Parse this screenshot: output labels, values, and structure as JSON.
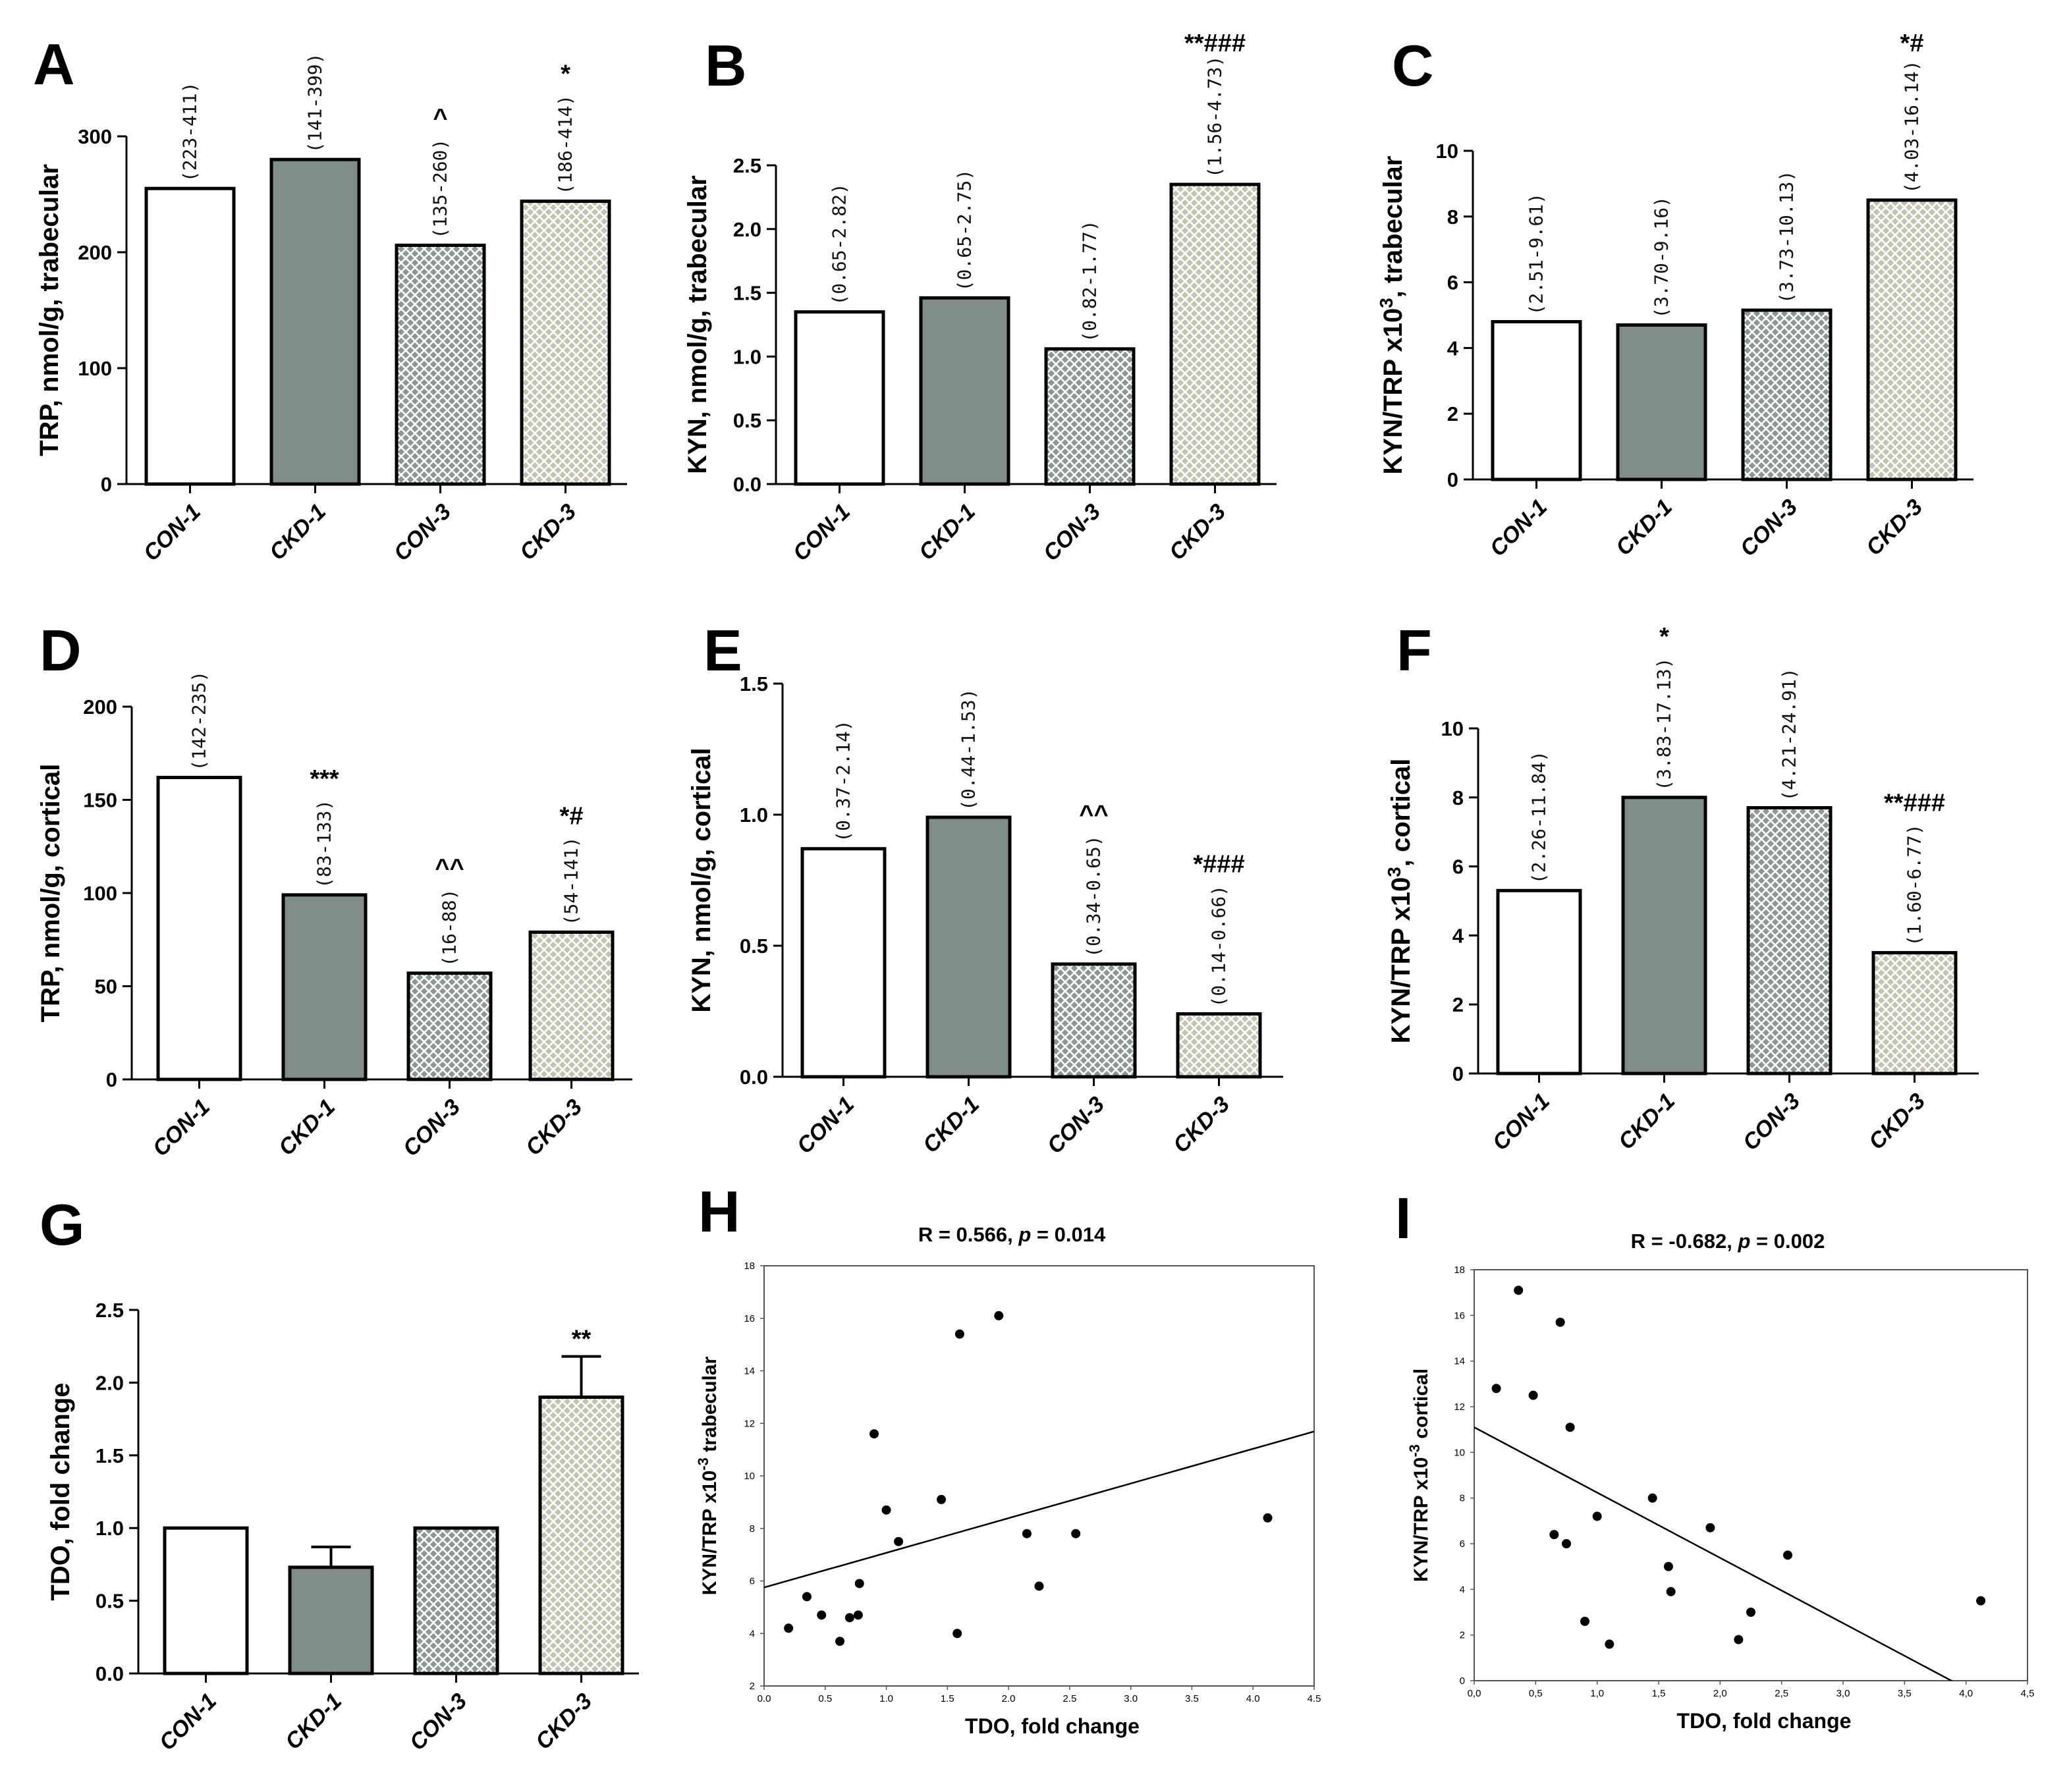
{
  "colors": {
    "con1": "#ffffff",
    "ckd1": "#7f8c87",
    "con3": "#8d9894",
    "ckd3": "#c4c3b2",
    "axis": "#000000"
  },
  "chart_data": [
    {
      "panel": "A",
      "type": "bar",
      "ylabel": "TRP, nmol/g, trabecular",
      "categories": [
        "CON-1",
        "CKD-1",
        "CON-3",
        "CKD-3"
      ],
      "values": [
        255,
        280,
        206,
        244
      ],
      "ranges": [
        "(223-411)",
        "(141-399)",
        "(135-260)",
        "(186-414)"
      ],
      "sig": [
        "",
        "",
        "^",
        "*"
      ],
      "ylim": [
        0,
        300
      ],
      "yticks": [
        0,
        100,
        200,
        300
      ],
      "ytick_labels": [
        "0",
        "100",
        "200",
        "300"
      ]
    },
    {
      "panel": "B",
      "type": "bar",
      "ylabel": "KYN, nmol/g, trabecular",
      "categories": [
        "CON-1",
        "CKD-1",
        "CON-3",
        "CKD-3"
      ],
      "values": [
        1.35,
        1.46,
        1.06,
        2.35
      ],
      "ranges": [
        "(0.65-2.82)",
        "(0.65-2.75)",
        "(0.82-1.77)",
        "(1.56-4.73)"
      ],
      "sig": [
        "",
        "",
        "",
        "**###"
      ],
      "ylim": [
        0,
        2.5
      ],
      "yticks": [
        0,
        0.5,
        1,
        1.5,
        2,
        2.5
      ],
      "ytick_labels": [
        "0.0",
        "0.5",
        "1.0",
        "1.5",
        "2.0",
        "2.5"
      ]
    },
    {
      "panel": "C",
      "type": "bar",
      "ylabel": "KYN/TRP x10",
      "ylabel_sup": "3",
      "ylabel_tail": ", trabecular",
      "categories": [
        "CON-1",
        "CKD-1",
        "CON-3",
        "CKD-3"
      ],
      "values": [
        4.8,
        4.7,
        5.15,
        8.5
      ],
      "ranges": [
        "(2.51-9.61)",
        "(3.70-9.16)",
        "(3.73-10.13)",
        "(4.03-16.14)"
      ],
      "sig": [
        "",
        "",
        "",
        "*#"
      ],
      "ylim": [
        0,
        10
      ],
      "yticks": [
        0,
        2,
        4,
        6,
        8,
        10
      ],
      "ytick_labels": [
        "0",
        "2",
        "4",
        "6",
        "8",
        "10"
      ]
    },
    {
      "panel": "D",
      "type": "bar",
      "ylabel": "TRP, nmol/g, cortical",
      "categories": [
        "CON-1",
        "CKD-1",
        "CON-3",
        "CKD-3"
      ],
      "values": [
        162,
        99,
        57,
        79
      ],
      "ranges": [
        "(142-235)",
        "(83-133)",
        "(16-88)",
        "(54-141)"
      ],
      "sig": [
        "",
        "***",
        "^^",
        "*#"
      ],
      "ylim": [
        0,
        200
      ],
      "yticks": [
        0,
        50,
        100,
        150,
        200
      ],
      "ytick_labels": [
        "0",
        "50",
        "100",
        "150",
        "200"
      ]
    },
    {
      "panel": "E",
      "type": "bar",
      "ylabel": "KYN, nmol/g, cortical",
      "categories": [
        "CON-1",
        "CKD-1",
        "CON-3",
        "CKD-3"
      ],
      "values": [
        0.87,
        0.99,
        0.43,
        0.24
      ],
      "ranges": [
        "(0.37-2.14)",
        "(0.44-1.53)",
        "(0.34-0.65)",
        "(0.14-0.66)"
      ],
      "sig": [
        "",
        "",
        "^^",
        "*###"
      ],
      "ylim": [
        0,
        1.5
      ],
      "yticks": [
        0,
        0.5,
        1,
        1.5
      ],
      "ytick_labels": [
        "0.0",
        "0.5",
        "1.0",
        "1.5"
      ]
    },
    {
      "panel": "F",
      "type": "bar",
      "ylabel": "KYN/TRP x10",
      "ylabel_sup": "3",
      "ylabel_tail": ", cortical",
      "categories": [
        "CON-1",
        "CKD-1",
        "CON-3",
        "CKD-3"
      ],
      "values": [
        5.3,
        8.0,
        7.7,
        3.5
      ],
      "ranges": [
        "(2.26-11.84)",
        "(3.83-17.13)",
        "(4.21-24.91)",
        "(1.60-6.77)"
      ],
      "sig": [
        "",
        "*",
        "",
        "**###"
      ],
      "ylim": [
        0,
        10
      ],
      "yticks": [
        0,
        2,
        4,
        6,
        8,
        10
      ],
      "ytick_labels": [
        "0",
        "2",
        "4",
        "6",
        "8",
        "10"
      ]
    },
    {
      "panel": "G",
      "type": "bar",
      "ylabel": "TDO, fold change",
      "categories": [
        "CON-1",
        "CKD-1",
        "CON-3",
        "CKD-3"
      ],
      "values": [
        1.0,
        0.73,
        1.0,
        1.9
      ],
      "errors": [
        0,
        0.14,
        0,
        0.28
      ],
      "ranges": [
        "",
        "",
        "",
        ""
      ],
      "sig": [
        "",
        "",
        "",
        "**"
      ],
      "ylim": [
        0,
        2.5
      ],
      "yticks": [
        0,
        0.5,
        1,
        1.5,
        2,
        2.5
      ],
      "ytick_labels": [
        "0.0",
        "0.5",
        "1.0",
        "1.5",
        "2.0",
        "2.5"
      ]
    },
    {
      "panel": "H",
      "type": "scatter",
      "title_r": "R = 0.566, ",
      "title_p": "p",
      "title_pval": " = 0.014",
      "xlabel": "TDO, fold change",
      "ylabel": "KYN/TRP x10",
      "ylabel_sup": "-3",
      "ylabel_tail": " trabecular",
      "xlim": [
        0,
        4.5
      ],
      "ylim": [
        2,
        18
      ],
      "xticks": [
        0,
        0.5,
        1,
        1.5,
        2,
        2.5,
        3,
        3.5,
        4,
        4.5
      ],
      "xtick_labels": [
        "0.0",
        "0.5",
        "1.0",
        "1.5",
        "2.0",
        "2.5",
        "3.0",
        "3.5",
        "4.0",
        "4.5"
      ],
      "yticks": [
        2,
        4,
        6,
        8,
        10,
        12,
        14,
        16,
        18
      ],
      "ytick_labels": [
        "2",
        "4",
        "6",
        "8",
        "10",
        "12",
        "14",
        "16",
        "18"
      ],
      "x": [
        0.2,
        0.35,
        0.47,
        0.62,
        0.7,
        0.77,
        0.78,
        0.9,
        1.0,
        1.1,
        1.45,
        1.58,
        1.6,
        1.92,
        2.15,
        2.25,
        2.55,
        4.12
      ],
      "y": [
        4.2,
        5.4,
        4.7,
        3.7,
        4.6,
        4.7,
        5.9,
        11.6,
        8.7,
        7.5,
        9.1,
        4.0,
        15.4,
        16.1,
        7.8,
        5.8,
        7.8,
        8.4
      ],
      "fit": {
        "intercept": 5.75,
        "slope": 1.32
      }
    },
    {
      "panel": "I",
      "type": "scatter",
      "title_r": "R = -0.682, ",
      "title_p": "p",
      "title_pval": " = 0.002",
      "xlabel": "TDO, fold change",
      "ylabel": "KYN/TRP x10",
      "ylabel_sup": "-3",
      "ylabel_tail": " cortical",
      "xlim": [
        0,
        4.5
      ],
      "ylim": [
        0,
        18
      ],
      "xticks": [
        0,
        0.5,
        1,
        1.5,
        2,
        2.5,
        3,
        3.5,
        4,
        4.5
      ],
      "xtick_labels": [
        "0,0",
        "0,5",
        "1,0",
        "1,5",
        "2,0",
        "2,5",
        "3,0",
        "3,5",
        "4,0",
        "4,5"
      ],
      "yticks": [
        0,
        2,
        4,
        6,
        8,
        10,
        12,
        14,
        16,
        18
      ],
      "ytick_labels": [
        "0",
        "2",
        "4",
        "6",
        "8",
        "10",
        "12",
        "14",
        "16",
        "18"
      ],
      "x": [
        0.18,
        0.36,
        0.48,
        0.65,
        0.7,
        0.75,
        0.78,
        0.9,
        1.0,
        1.1,
        1.45,
        1.58,
        1.6,
        1.92,
        2.15,
        2.25,
        2.55,
        4.12
      ],
      "y": [
        12.8,
        17.1,
        12.5,
        6.4,
        15.7,
        6.0,
        11.1,
        2.6,
        7.2,
        1.6,
        8.0,
        5.0,
        3.9,
        6.7,
        1.8,
        3.0,
        5.5,
        3.5
      ],
      "fit": {
        "intercept": 11.1,
        "slope": -2.86
      }
    }
  ]
}
